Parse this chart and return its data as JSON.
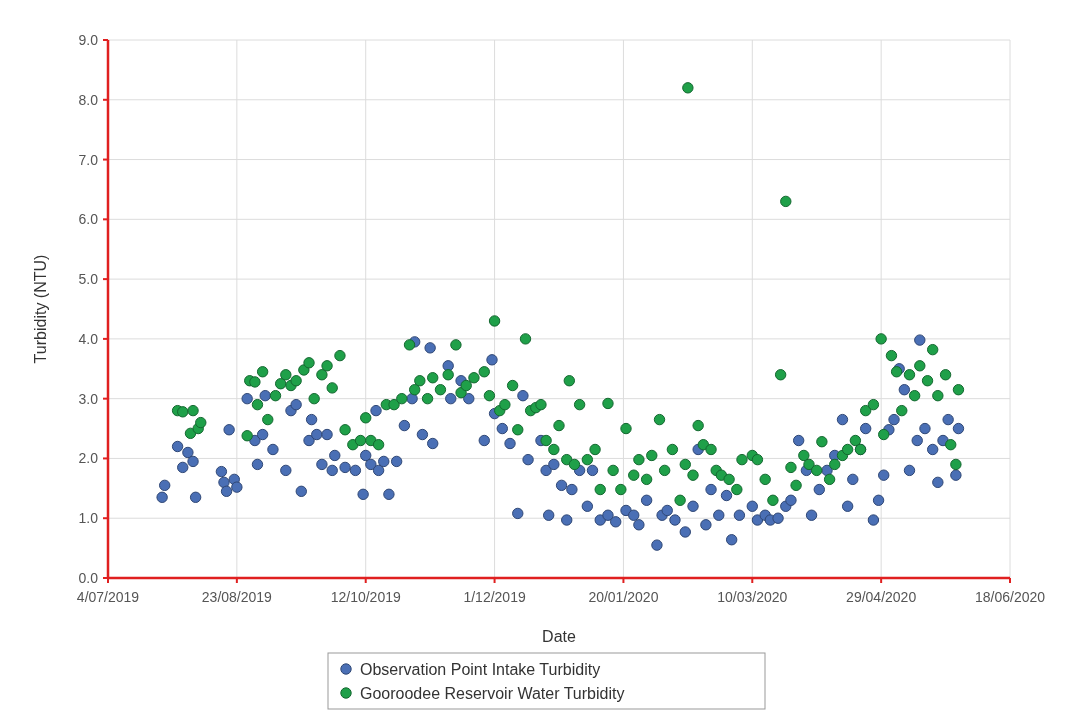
{
  "chart_data": {
    "type": "scatter",
    "xlabel": "Date",
    "ylabel": "Turbidity (NTU)",
    "marker": "circle",
    "grid": true,
    "legend": "bottom",
    "xlim": [
      "2019-07-04",
      "2020-06-18"
    ],
    "xticks": [
      {
        "value": "2019-07-04",
        "label": "4/07/2019"
      },
      {
        "value": "2019-08-23",
        "label": "23/08/2019"
      },
      {
        "value": "2019-10-12",
        "label": "12/10/2019"
      },
      {
        "value": "2019-12-01",
        "label": "1/12/2019"
      },
      {
        "value": "2020-01-20",
        "label": "20/01/2020"
      },
      {
        "value": "2020-03-10",
        "label": "10/03/2020"
      },
      {
        "value": "2020-04-29",
        "label": "29/04/2020"
      },
      {
        "value": "2020-06-18",
        "label": "18/06/2020"
      }
    ],
    "ylim": [
      0,
      9
    ],
    "yticks": [
      {
        "value": 0,
        "label": "0.0"
      },
      {
        "value": 1,
        "label": "1.0"
      },
      {
        "value": 2,
        "label": "2.0"
      },
      {
        "value": 3,
        "label": "3.0"
      },
      {
        "value": 4,
        "label": "4.0"
      },
      {
        "value": 5,
        "label": "5.0"
      },
      {
        "value": 6,
        "label": "6.0"
      },
      {
        "value": 7,
        "label": "7.0"
      },
      {
        "value": 8,
        "label": "8.0"
      },
      {
        "value": 9,
        "label": "9.0"
      }
    ],
    "series": [
      {
        "name": "Observation Point Intake Turbidity",
        "color": "#4a6fb5",
        "x": [
          "2019-07-25",
          "2019-07-26",
          "2019-07-31",
          "2019-08-02",
          "2019-08-04",
          "2019-08-06",
          "2019-08-07",
          "2019-08-17",
          "2019-08-18",
          "2019-08-19",
          "2019-08-20",
          "2019-08-22",
          "2019-08-23",
          "2019-08-27",
          "2019-08-30",
          "2019-08-31",
          "2019-09-02",
          "2019-09-03",
          "2019-09-06",
          "2019-09-11",
          "2019-09-13",
          "2019-09-15",
          "2019-09-17",
          "2019-09-20",
          "2019-09-21",
          "2019-09-23",
          "2019-09-25",
          "2019-09-27",
          "2019-09-29",
          "2019-09-30",
          "2019-10-04",
          "2019-10-08",
          "2019-10-11",
          "2019-10-12",
          "2019-10-14",
          "2019-10-16",
          "2019-10-17",
          "2019-10-19",
          "2019-10-21",
          "2019-10-24",
          "2019-10-27",
          "2019-10-30",
          "2019-10-31",
          "2019-11-03",
          "2019-11-06",
          "2019-11-07",
          "2019-11-13",
          "2019-11-14",
          "2019-11-18",
          "2019-11-21",
          "2019-11-27",
          "2019-11-30",
          "2019-12-01",
          "2019-12-04",
          "2019-12-07",
          "2019-12-10",
          "2019-12-12",
          "2019-12-14",
          "2019-12-19",
          "2019-12-21",
          "2019-12-22",
          "2019-12-24",
          "2019-12-27",
          "2019-12-29",
          "2019-12-31",
          "2020-01-03",
          "2020-01-06",
          "2020-01-08",
          "2020-01-11",
          "2020-01-14",
          "2020-01-17",
          "2020-01-21",
          "2020-01-24",
          "2020-01-26",
          "2020-01-29",
          "2020-02-02",
          "2020-02-04",
          "2020-02-06",
          "2020-02-09",
          "2020-02-13",
          "2020-02-16",
          "2020-02-18",
          "2020-02-21",
          "2020-02-23",
          "2020-02-26",
          "2020-02-29",
          "2020-03-02",
          "2020-03-05",
          "2020-03-10",
          "2020-03-12",
          "2020-03-15",
          "2020-03-17",
          "2020-03-20",
          "2020-03-23",
          "2020-03-25",
          "2020-03-28",
          "2020-03-31",
          "2020-04-02",
          "2020-04-05",
          "2020-04-08",
          "2020-04-11",
          "2020-04-14",
          "2020-04-16",
          "2020-04-18",
          "2020-04-21",
          "2020-04-23",
          "2020-04-26",
          "2020-04-28",
          "2020-04-30",
          "2020-05-02",
          "2020-05-04",
          "2020-05-06",
          "2020-05-08",
          "2020-05-10",
          "2020-05-13",
          "2020-05-14",
          "2020-05-16",
          "2020-05-19",
          "2020-05-21",
          "2020-05-23",
          "2020-05-25",
          "2020-05-28",
          "2020-05-29"
        ],
        "values": [
          1.35,
          1.55,
          2.2,
          1.85,
          2.1,
          1.95,
          1.35,
          1.78,
          1.6,
          1.45,
          2.48,
          1.65,
          1.52,
          3.0,
          2.3,
          1.9,
          2.4,
          3.05,
          2.15,
          1.8,
          2.8,
          2.9,
          1.45,
          2.3,
          2.65,
          2.4,
          1.9,
          2.4,
          1.8,
          2.05,
          1.85,
          1.8,
          1.4,
          2.05,
          1.9,
          2.8,
          1.8,
          1.95,
          1.4,
          1.95,
          2.55,
          3.0,
          3.95,
          2.4,
          3.85,
          2.25,
          3.55,
          3.0,
          3.3,
          3.0,
          2.3,
          3.65,
          2.75,
          2.5,
          2.25,
          1.08,
          3.05,
          1.98,
          2.3,
          1.8,
          1.05,
          1.9,
          1.55,
          0.97,
          1.48,
          1.8,
          1.2,
          1.8,
          0.97,
          1.05,
          0.94,
          1.13,
          1.05,
          0.89,
          1.3,
          0.55,
          1.05,
          1.13,
          0.97,
          0.77,
          1.2,
          2.15,
          0.89,
          1.48,
          1.05,
          1.38,
          0.64,
          1.05,
          1.2,
          0.97,
          1.05,
          0.97,
          1.0,
          1.2,
          1.3,
          2.3,
          1.8,
          1.05,
          1.48,
          1.8,
          2.05,
          2.65,
          1.2,
          1.65,
          2.15,
          2.5,
          0.97,
          1.3,
          1.72,
          2.48,
          2.65,
          3.5,
          3.15,
          1.8,
          2.3,
          3.98,
          2.5,
          2.15,
          1.6,
          2.3,
          2.65,
          1.72,
          2.5
        ]
      },
      {
        "name": "Gooroodee Reservoir Water Turbidity",
        "color": "#1fa049",
        "x": [
          "2019-07-31",
          "2019-08-02",
          "2019-08-05",
          "2019-08-06",
          "2019-08-08",
          "2019-08-09",
          "2019-08-27",
          "2019-08-28",
          "2019-08-30",
          "2019-08-31",
          "2019-09-02",
          "2019-09-04",
          "2019-09-07",
          "2019-09-09",
          "2019-09-11",
          "2019-09-13",
          "2019-09-15",
          "2019-09-18",
          "2019-09-20",
          "2019-09-22",
          "2019-09-25",
          "2019-09-27",
          "2019-09-29",
          "2019-10-02",
          "2019-10-04",
          "2019-10-07",
          "2019-10-10",
          "2019-10-12",
          "2019-10-14",
          "2019-10-17",
          "2019-10-20",
          "2019-10-23",
          "2019-10-26",
          "2019-10-29",
          "2019-10-31",
          "2019-11-02",
          "2019-11-05",
          "2019-11-07",
          "2019-11-10",
          "2019-11-13",
          "2019-11-16",
          "2019-11-18",
          "2019-11-20",
          "2019-11-23",
          "2019-11-27",
          "2019-11-29",
          "2019-12-01",
          "2019-12-03",
          "2019-12-05",
          "2019-12-08",
          "2019-12-10",
          "2019-12-13",
          "2019-12-15",
          "2019-12-17",
          "2019-12-19",
          "2019-12-21",
          "2019-12-24",
          "2019-12-26",
          "2019-12-29",
          "2019-12-30",
          "2020-01-01",
          "2020-01-03",
          "2020-01-06",
          "2020-01-09",
          "2020-01-11",
          "2020-01-14",
          "2020-01-16",
          "2020-01-19",
          "2020-01-21",
          "2020-01-24",
          "2020-01-26",
          "2020-01-29",
          "2020-01-31",
          "2020-02-03",
          "2020-02-05",
          "2020-02-08",
          "2020-02-11",
          "2020-02-13",
          "2020-02-14",
          "2020-02-16",
          "2020-02-18",
          "2020-02-20",
          "2020-02-23",
          "2020-02-25",
          "2020-02-27",
          "2020-03-01",
          "2020-03-04",
          "2020-03-06",
          "2020-03-10",
          "2020-03-12",
          "2020-03-15",
          "2020-03-18",
          "2020-03-21",
          "2020-03-23",
          "2020-03-25",
          "2020-03-27",
          "2020-03-30",
          "2020-04-01",
          "2020-04-04",
          "2020-04-06",
          "2020-04-09",
          "2020-04-11",
          "2020-04-14",
          "2020-04-16",
          "2020-04-19",
          "2020-04-21",
          "2020-04-23",
          "2020-04-26",
          "2020-04-29",
          "2020-04-30",
          "2020-05-03",
          "2020-05-05",
          "2020-05-07",
          "2020-05-10",
          "2020-05-12",
          "2020-05-14",
          "2020-05-17",
          "2020-05-19",
          "2020-05-21",
          "2020-05-24",
          "2020-05-26",
          "2020-05-28",
          "2020-05-29"
        ],
        "values": [
          2.8,
          2.78,
          2.42,
          2.8,
          2.5,
          2.6,
          2.38,
          3.3,
          3.28,
          2.9,
          3.45,
          2.65,
          3.05,
          3.25,
          3.4,
          3.22,
          3.3,
          3.48,
          3.6,
          3.0,
          3.4,
          3.55,
          3.18,
          3.72,
          2.48,
          2.23,
          2.3,
          2.68,
          2.3,
          2.23,
          2.9,
          2.9,
          3.0,
          3.9,
          3.15,
          3.3,
          3.0,
          3.35,
          3.15,
          3.4,
          3.9,
          3.1,
          3.22,
          3.35,
          3.45,
          3.05,
          4.3,
          2.8,
          2.9,
          3.22,
          2.48,
          4.0,
          2.8,
          2.85,
          2.9,
          2.3,
          2.15,
          2.55,
          1.98,
          3.3,
          1.9,
          2.9,
          1.98,
          2.15,
          1.48,
          2.92,
          1.8,
          1.48,
          2.5,
          1.72,
          1.98,
          1.65,
          2.05,
          2.65,
          1.8,
          2.15,
          1.3,
          1.9,
          8.2,
          1.72,
          2.55,
          2.23,
          2.15,
          1.8,
          1.72,
          1.65,
          1.48,
          1.98,
          2.05,
          1.98,
          1.65,
          1.3,
          3.4,
          6.3,
          1.85,
          1.55,
          2.05,
          1.9,
          1.8,
          2.28,
          1.65,
          1.9,
          2.05,
          2.15,
          2.3,
          2.15,
          2.8,
          2.9,
          4.0,
          2.4,
          3.72,
          3.45,
          2.8,
          3.4,
          3.05,
          3.55,
          3.3,
          3.82,
          3.05,
          3.4,
          2.23,
          1.9,
          3.15
        ]
      }
    ]
  }
}
